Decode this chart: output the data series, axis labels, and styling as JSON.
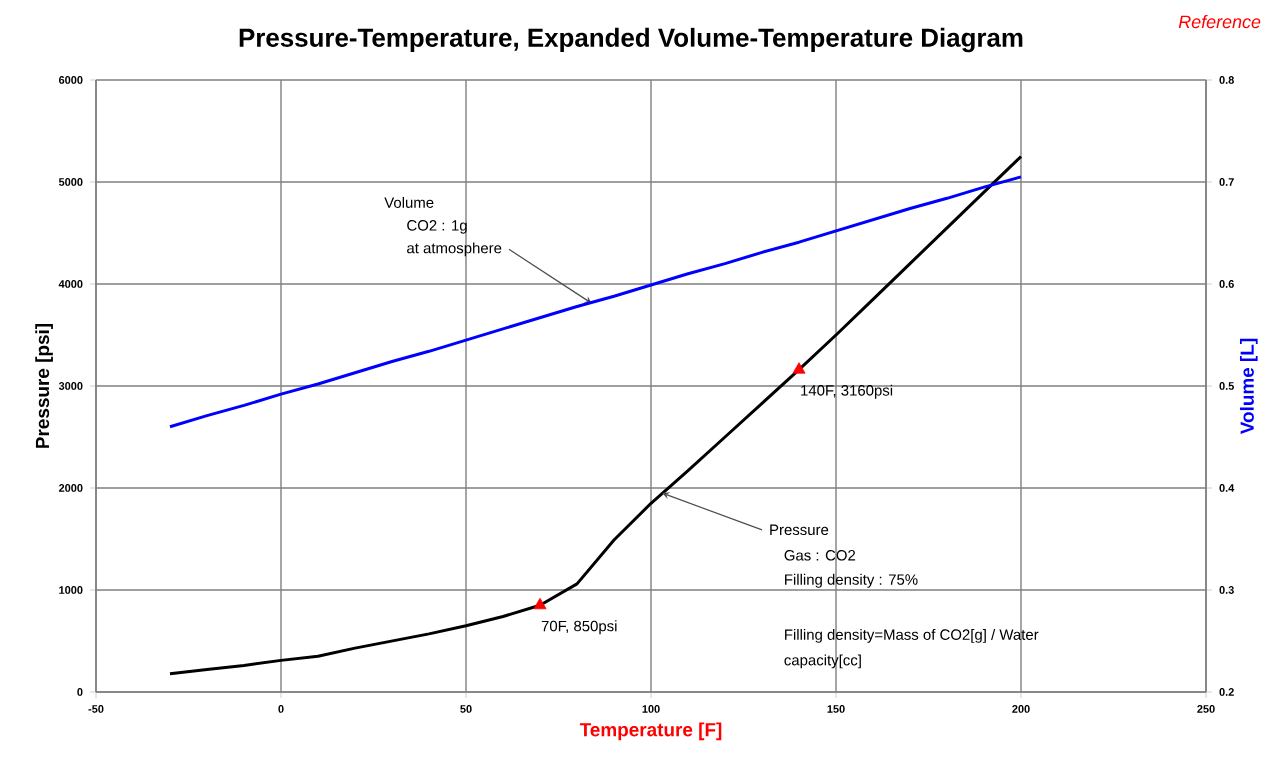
{
  "chart_data": {
    "type": "line",
    "title": "Pressure-Temperature, Expanded Volume-Temperature Diagram",
    "xlabel": "Temperature [F]",
    "ylabel": "Pressure [psi]",
    "y2label": "Volume [L]",
    "xlim": [
      -50,
      250
    ],
    "xticks": [
      -50,
      0,
      50,
      100,
      150,
      200,
      250
    ],
    "ylim": [
      0,
      6000
    ],
    "yticks": [
      0,
      1000,
      2000,
      3000,
      4000,
      5000,
      6000
    ],
    "y2lim": [
      0.2,
      0.8
    ],
    "y2ticks": [
      0.2,
      0.3,
      0.4,
      0.5,
      0.6,
      0.7,
      0.8
    ],
    "grid": true,
    "series": [
      {
        "type": "line",
        "color": "#000000",
        "x": [
          -30,
          -20,
          -10,
          0,
          10,
          20,
          30,
          40,
          50,
          60,
          70,
          80,
          90,
          100,
          110,
          120,
          130,
          140,
          150,
          160,
          170,
          180,
          190,
          200
        ],
        "values": [
          180,
          220,
          260,
          310,
          350,
          430,
          500,
          570,
          650,
          740,
          850,
          1060,
          1490,
          1850,
          2170,
          2500,
          2830,
          3160,
          3500,
          3850,
          4200,
          4550,
          4900,
          5250
        ]
      },
      {
        "type": "line",
        "color": "#0000ff",
        "axis": "y2",
        "x": [
          -30,
          -20,
          -10,
          0,
          10,
          20,
          30,
          40,
          50,
          60,
          70,
          80,
          90,
          100,
          110,
          120,
          130,
          140,
          150,
          160,
          170,
          180,
          190,
          200
        ],
        "values": [
          0.46,
          0.471,
          0.481,
          0.492,
          0.502,
          0.513,
          0.524,
          0.534,
          0.545,
          0.556,
          0.567,
          0.578,
          0.588,
          0.599,
          0.61,
          0.62,
          0.631,
          0.641,
          0.652,
          0.663,
          0.674,
          0.684,
          0.695,
          0.705
        ]
      },
      {
        "type": "scatter",
        "color": "#ff0000",
        "marker": "triangle",
        "x": [
          70,
          140
        ],
        "values": [
          850,
          3160
        ]
      }
    ],
    "annotations": [
      "Reference",
      "Volume",
      "CO2 : 1g",
      {
        "text": "at atmosphere",
        "x": 84,
        "y": 3810
      },
      {
        "text": "Pressure",
        "x": 103,
        "y": 1950
      },
      "Gas : CO2",
      "Filling density : 75%",
      "Filling density=Mass of CO2[g] / Water",
      "capacity[cc]",
      {
        "text": "70F, 850psi",
        "x": 70,
        "y": 850
      },
      {
        "text": "140F, 3160psi",
        "x": 140,
        "y": 3160
      }
    ]
  }
}
